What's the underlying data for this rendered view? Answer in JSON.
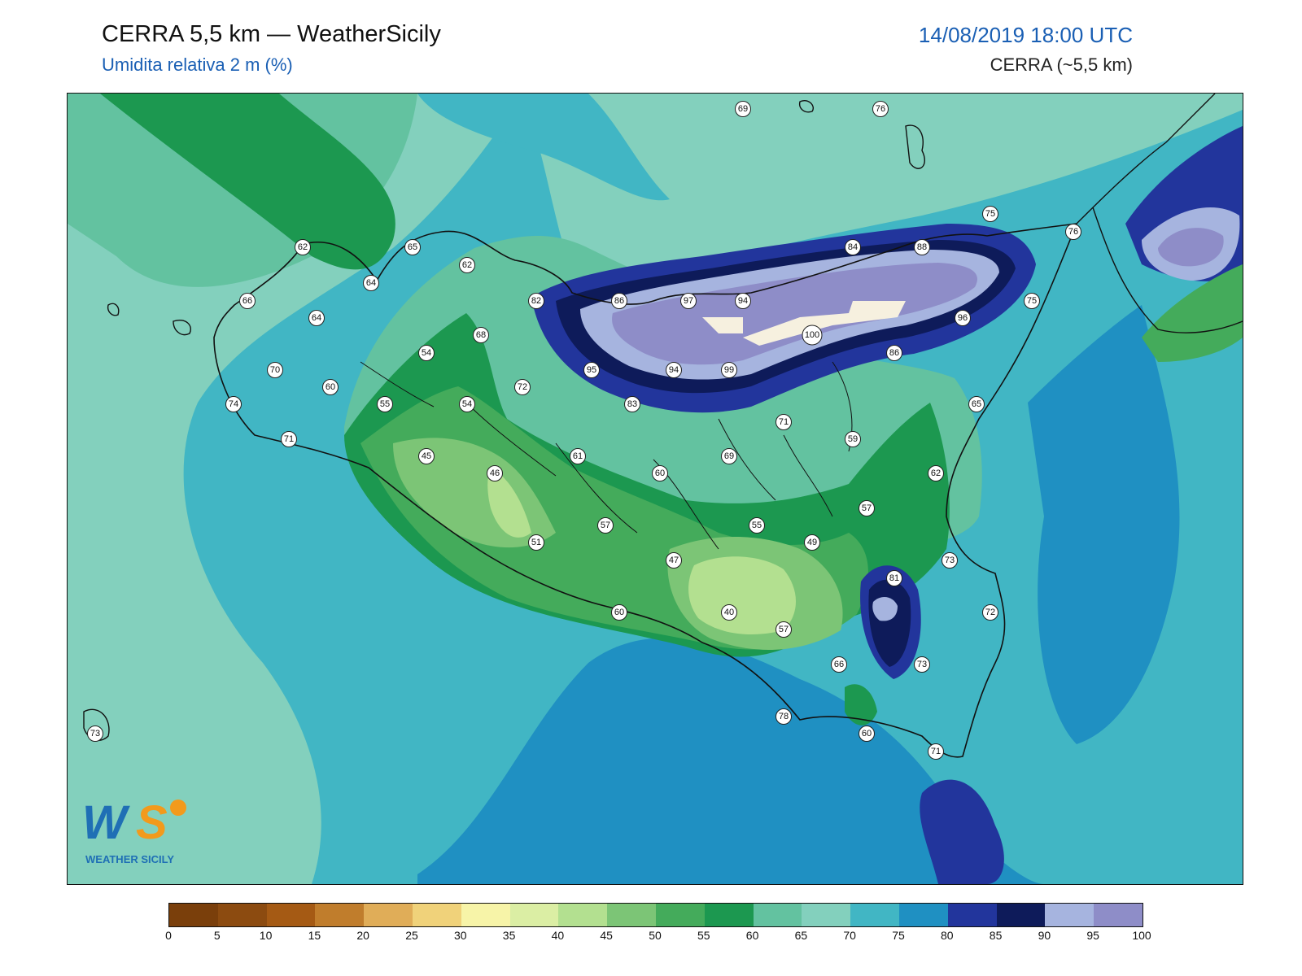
{
  "header": {
    "title": "CERRA 5,5 km — WeatherSicily",
    "subtitle": "Umidita relativa 2 m (%)",
    "datetime": "14/08/2019 18:00 UTC",
    "model": "CERRA (~5,5 km)"
  },
  "logo": {
    "text": "WEATHER SICILY",
    "initials": "WS"
  },
  "colorbar": {
    "colors": [
      "#7a3f0b",
      "#8c4b10",
      "#a55a14",
      "#c07d2c",
      "#e0ad58",
      "#f0d27a",
      "#f7f4a8",
      "#dbeea4",
      "#b3e090",
      "#7cc576",
      "#44ab5b",
      "#1c9850",
      "#63c2a0",
      "#83d0bd",
      "#41b6c4",
      "#1f90c2",
      "#22359c",
      "#0e1b5a",
      "#a6b4df",
      "#8e8dc8"
    ],
    "ticks": [
      "0",
      "5",
      "10",
      "15",
      "20",
      "25",
      "30",
      "35",
      "40",
      "45",
      "50",
      "55",
      "60",
      "65",
      "70",
      "75",
      "80",
      "85",
      "90",
      "95",
      "100"
    ]
  },
  "stations": [
    {
      "v": "69"
    },
    {
      "v": "76"
    },
    {
      "v": "75"
    },
    {
      "v": "76"
    },
    {
      "v": "62"
    },
    {
      "v": "65"
    },
    {
      "v": "62"
    },
    {
      "v": "64"
    },
    {
      "v": "84"
    },
    {
      "v": "88"
    },
    {
      "v": "66"
    },
    {
      "v": "64"
    },
    {
      "v": "82"
    },
    {
      "v": "86"
    },
    {
      "v": "97"
    },
    {
      "v": "94"
    },
    {
      "v": "75"
    },
    {
      "v": "96"
    },
    {
      "v": "100"
    },
    {
      "v": "68"
    },
    {
      "v": "54"
    },
    {
      "v": "86"
    },
    {
      "v": "70"
    },
    {
      "v": "60"
    },
    {
      "v": "95"
    },
    {
      "v": "94"
    },
    {
      "v": "99"
    },
    {
      "v": "72"
    },
    {
      "v": "74"
    },
    {
      "v": "55"
    },
    {
      "v": "54"
    },
    {
      "v": "83"
    },
    {
      "v": "65"
    },
    {
      "v": "71"
    },
    {
      "v": "71"
    },
    {
      "v": "59"
    },
    {
      "v": "45"
    },
    {
      "v": "61"
    },
    {
      "v": "69"
    },
    {
      "v": "46"
    },
    {
      "v": "60"
    },
    {
      "v": "62"
    },
    {
      "v": "57"
    },
    {
      "v": "57"
    },
    {
      "v": "55"
    },
    {
      "v": "51"
    },
    {
      "v": "49"
    },
    {
      "v": "47"
    },
    {
      "v": "73"
    },
    {
      "v": "81"
    },
    {
      "v": "60"
    },
    {
      "v": "40"
    },
    {
      "v": "72"
    },
    {
      "v": "57"
    },
    {
      "v": "66"
    },
    {
      "v": "73"
    },
    {
      "v": "78"
    },
    {
      "v": "73"
    },
    {
      "v": "60"
    },
    {
      "v": "71"
    }
  ]
}
